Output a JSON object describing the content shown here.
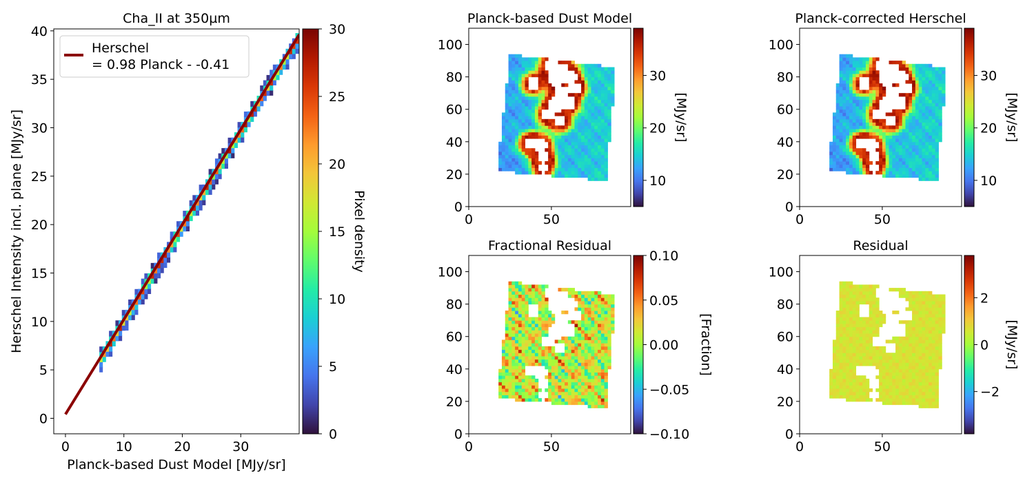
{
  "colors": {
    "fit_line": "#8b0000",
    "turbo": [
      "#30123b",
      "#4145ab",
      "#4675ed",
      "#39a2fc",
      "#1bcfd4",
      "#24eca6",
      "#61fc6c",
      "#a4fc3b",
      "#d1e834",
      "#f3c63a",
      "#fe9b2d",
      "#f36315",
      "#d93806",
      "#b11901",
      "#7a0402"
    ]
  },
  "chart_data": [
    {
      "type": "heatmap",
      "title": "Cha_II at 350µm",
      "xlabel": "Planck-based Dust Model [MJy/sr]",
      "ylabel": "Herschel Intensity incl. plane [MJy/sr]",
      "xlim": [
        -2,
        40
      ],
      "ylim": [
        -1.6,
        40.2
      ],
      "xticks": [
        0,
        10,
        20,
        30
      ],
      "yticks": [
        0,
        5,
        10,
        15,
        20,
        25,
        30,
        35,
        40
      ],
      "colorbar": {
        "label": "Pixel density",
        "range": [
          0,
          30
        ],
        "ticks": [
          0,
          5,
          10,
          15,
          20,
          25,
          30
        ]
      },
      "legend": {
        "position": "top-left",
        "line1": "Herschel",
        "line2": "= 0.98 Planck - -0.41"
      },
      "fit": {
        "slope": 0.98,
        "intercept": 0.41,
        "x_range": [
          0,
          40
        ]
      },
      "density_band": {
        "x_range": [
          5.8,
          39.5
        ]
      }
    },
    {
      "type": "heatmap",
      "title": "Planck-based Dust Model",
      "colorbar": {
        "label": "[MJy/sr]",
        "range": [
          5,
          39
        ],
        "ticks": [
          10,
          20,
          30
        ]
      },
      "xlim": [
        0,
        98
      ],
      "ylim": [
        0,
        110
      ],
      "xticks": [
        0,
        50
      ],
      "yticks": [
        0,
        20,
        40,
        60,
        80,
        100
      ]
    },
    {
      "type": "heatmap",
      "title": "Planck-corrected Herschel",
      "colorbar": {
        "label": "[MJy/sr]",
        "range": [
          5,
          39
        ],
        "ticks": [
          10,
          20,
          30
        ]
      },
      "xlim": [
        0,
        98
      ],
      "ylim": [
        0,
        110
      ],
      "xticks": [
        0,
        50
      ],
      "yticks": [
        0,
        20,
        40,
        60,
        80,
        100
      ]
    },
    {
      "type": "heatmap",
      "title": "Fractional Residual",
      "colorbar": {
        "label": "[Fraction]",
        "range": [
          -0.1,
          0.1
        ],
        "ticks": [
          0.1,
          0.05,
          0.0,
          -0.05,
          -0.1
        ],
        "tick_labels": [
          "0.10",
          "0.05",
          "0.00",
          "−0.05",
          "−0.10"
        ]
      },
      "xlim": [
        0,
        98
      ],
      "ylim": [
        0,
        110
      ],
      "xticks": [
        0,
        50
      ],
      "yticks": [
        0,
        20,
        40,
        60,
        80,
        100
      ]
    },
    {
      "type": "heatmap",
      "title": "Residual",
      "colorbar": {
        "label": "[MJy/sr]",
        "range": [
          -3.8,
          3.8
        ],
        "ticks": [
          2,
          0,
          -2
        ],
        "tick_labels": [
          "2",
          "0",
          "−2"
        ]
      },
      "xlim": [
        0,
        98
      ],
      "ylim": [
        0,
        110
      ],
      "xticks": [
        0,
        50
      ],
      "yticks": [
        0,
        20,
        40,
        60,
        80,
        100
      ]
    }
  ]
}
